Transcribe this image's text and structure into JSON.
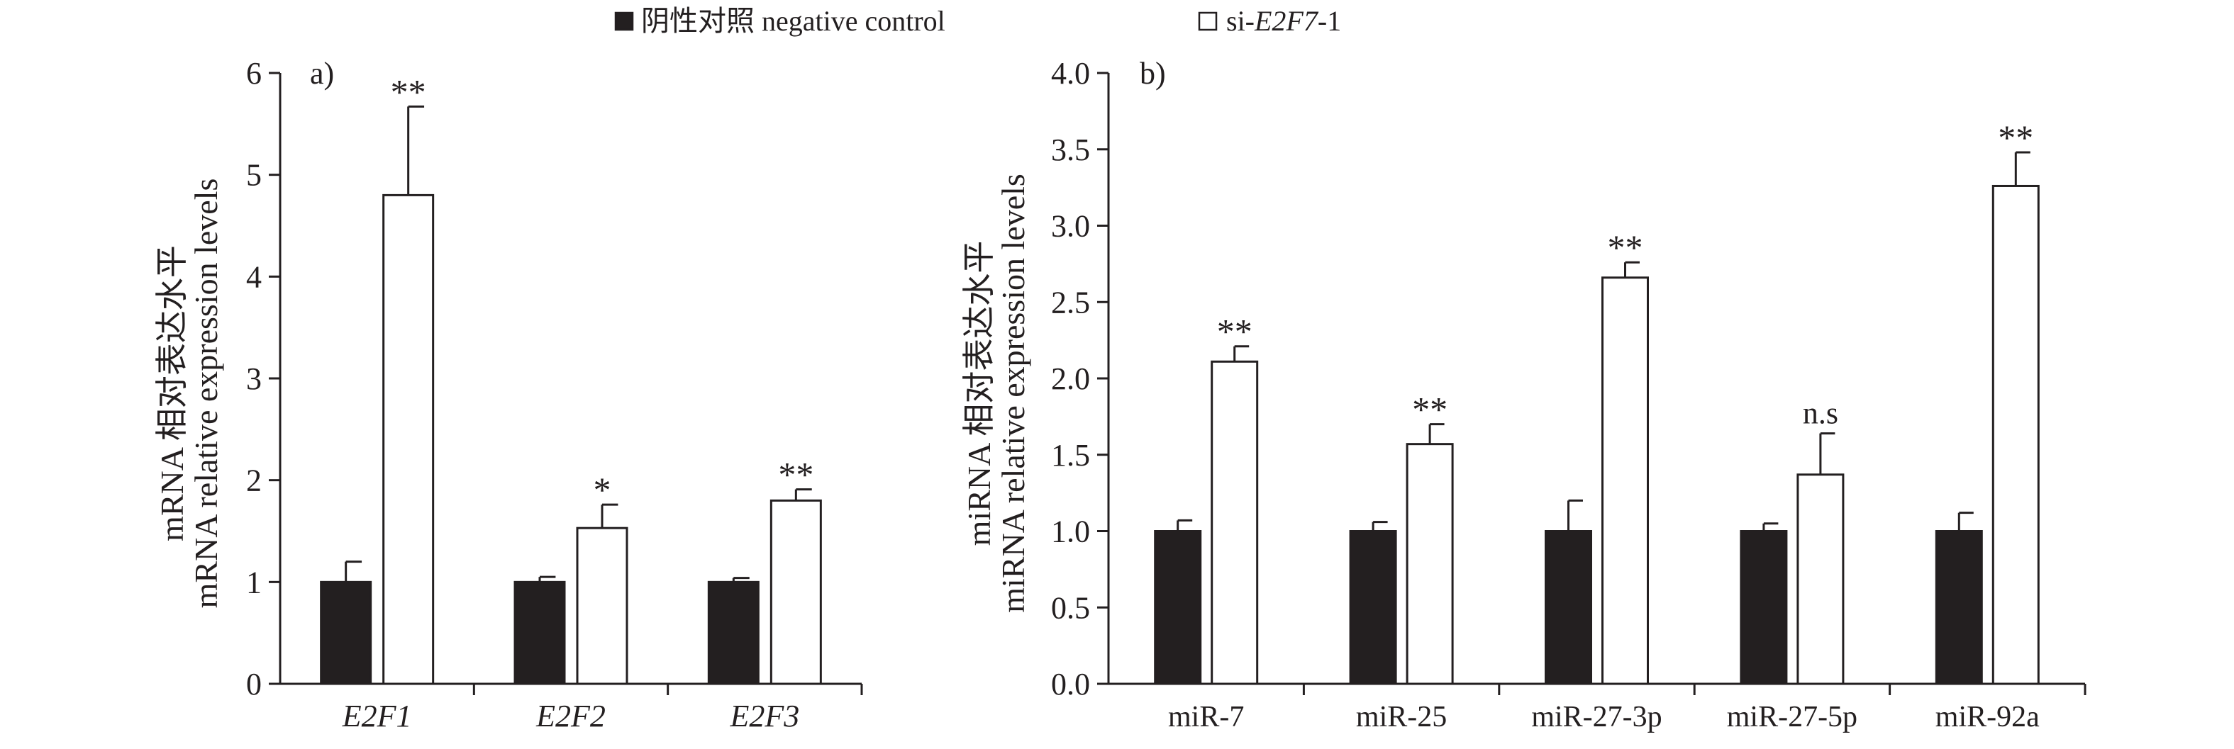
{
  "legend": {
    "items": [
      {
        "label": "阴性对照 negative control",
        "fill": "#231f20"
      },
      {
        "prefix": "si-",
        "italic": "E2F7",
        "suffix": "-1",
        "fill": "#ffffff"
      }
    ]
  },
  "chart_data": [
    {
      "type": "bar",
      "panel_label": "a)",
      "ylabel_cn": "mRNA 相对表达水平",
      "ylabel_en": "mRNA relative expression levels",
      "categories": [
        "E2F1",
        "E2F2",
        "E2F3"
      ],
      "categories_italic": true,
      "ylim": [
        0,
        6
      ],
      "yticks": [
        0,
        1,
        2,
        3,
        4,
        5,
        6
      ],
      "tick_decimals": 0,
      "series": [
        {
          "name": "阴性对照 negative control",
          "values": [
            1.0,
            1.0,
            1.0
          ],
          "errors": [
            0.2,
            0.05,
            0.04
          ],
          "color": "#231f20"
        },
        {
          "name": "si-E2F7-1",
          "values": [
            4.8,
            1.53,
            1.8
          ],
          "errors": [
            0.87,
            0.23,
            0.11
          ],
          "color": "#ffffff"
        }
      ],
      "significance": [
        "**",
        "*",
        "**"
      ]
    },
    {
      "type": "bar",
      "panel_label": "b)",
      "ylabel_cn": "miRNA 相对表达水平",
      "ylabel_en": "miRNA relative expression levels",
      "categories": [
        "miR-7",
        "miR-25",
        "miR-27-3p",
        "miR-27-5p",
        "miR-92a"
      ],
      "categories_italic": false,
      "ylim": [
        0,
        4
      ],
      "yticks": [
        0,
        0.5,
        1,
        1.5,
        2,
        2.5,
        3,
        3.5,
        4
      ],
      "tick_decimals": 1,
      "series": [
        {
          "name": "阴性对照 negative control",
          "values": [
            1.0,
            1.0,
            1.0,
            1.0,
            1.0
          ],
          "errors": [
            0.07,
            0.06,
            0.2,
            0.05,
            0.12
          ],
          "color": "#231f20"
        },
        {
          "name": "si-E2F7-1",
          "values": [
            2.11,
            1.57,
            2.66,
            1.37,
            3.26
          ],
          "errors": [
            0.1,
            0.13,
            0.1,
            0.27,
            0.22
          ],
          "color": "#ffffff"
        }
      ],
      "significance": [
        "**",
        "**",
        "**",
        "n.s",
        "**"
      ]
    }
  ]
}
